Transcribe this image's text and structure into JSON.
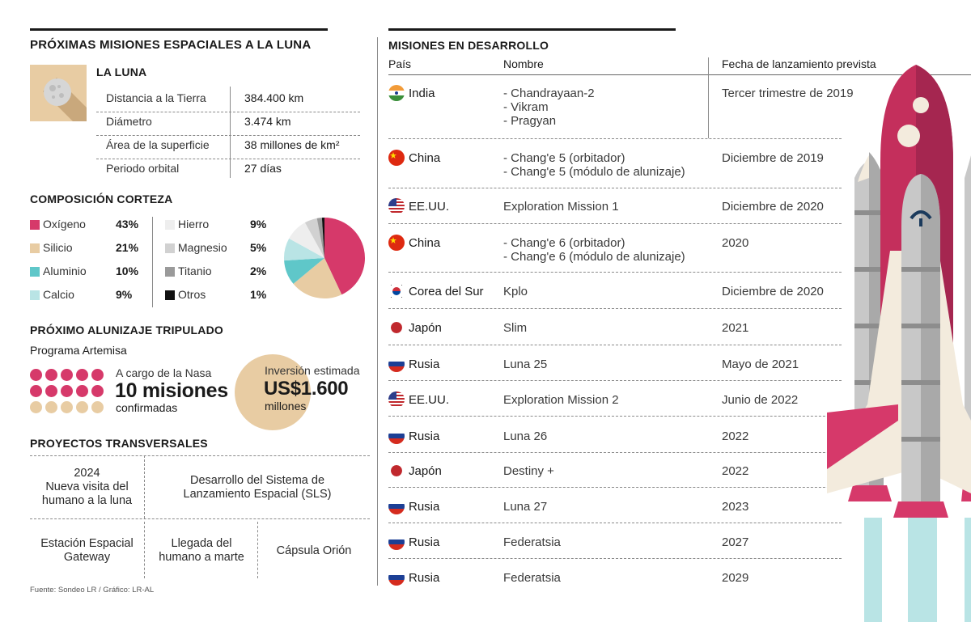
{
  "header": {
    "title": "PRÓXIMAS MISIONES ESPACIALES A LA LUNA"
  },
  "moon": {
    "title": "LA LUNA",
    "rows": [
      {
        "label": "Distancia a la Tierra",
        "value": "384.400 km"
      },
      {
        "label": "Diámetro",
        "value": "3.474 km"
      },
      {
        "label": "Área de la superficie",
        "value": "38 millones de km²"
      },
      {
        "label": "Periodo orbital",
        "value": "27 días"
      }
    ]
  },
  "crust": {
    "title": "COMPOSICIÓN CORTEZA",
    "items": [
      {
        "name": "Oxígeno",
        "pct": "43%",
        "color": "#d6396a"
      },
      {
        "name": "Silicio",
        "pct": "21%",
        "color": "#e8cca3"
      },
      {
        "name": "Aluminio",
        "pct": "10%",
        "color": "#5fc7c9"
      },
      {
        "name": "Calcio",
        "pct": "9%",
        "color": "#b9e4e5"
      },
      {
        "name": "Hierro",
        "pct": "9%",
        "color": "#eeeeee"
      },
      {
        "name": "Magnesio",
        "pct": "5%",
        "color": "#d1d1d1"
      },
      {
        "name": "Titanio",
        "pct": "2%",
        "color": "#9a9a9a"
      },
      {
        "name": "Otros",
        "pct": "1%",
        "color": "#111111"
      }
    ]
  },
  "chart_data": {
    "type": "pie",
    "categories": [
      "Oxígeno",
      "Silicio",
      "Aluminio",
      "Calcio",
      "Hierro",
      "Magnesio",
      "Titanio",
      "Otros"
    ],
    "values": [
      43,
      21,
      10,
      9,
      9,
      5,
      2,
      1
    ]
  },
  "artemis": {
    "title": "PRÓXIMO ALUNIZAJE TRIPULADO",
    "program": "Programa Artemisa",
    "lead": "A cargo de la Nasa",
    "missions": "10 misiones",
    "confirmed": "confirmadas",
    "dots_total": 15,
    "dots_highlight": 10,
    "investment_label": "Inversión estimada",
    "investment_value": "US$1.600",
    "investment_unit": "millones"
  },
  "projects": {
    "title": "PROYECTOS TRANSVERSALES",
    "items": [
      "2024\nNueva visita del\nhumano a la luna",
      "Desarrollo del Sistema de\nLanzamiento Espacial (SLS)",
      "Estación Espacial\nGateway",
      "Llegada del\nhumano a marte",
      "Cápsula Orión"
    ]
  },
  "missions": {
    "title": "MISIONES EN DESARROLLO",
    "headers": [
      "País",
      "Nombre",
      "Fecha de lanzamiento prevista"
    ],
    "rows": [
      {
        "country": "India",
        "flag": "india",
        "name": "- Chandrayaan-2\n- Vikram\n- Pragyan",
        "date": "Tercer trimestre de 2019"
      },
      {
        "country": "China",
        "flag": "china",
        "name": "- Chang'e 5 (orbitador)\n- Chang'e 5 (módulo de alunizaje)",
        "date": "Diciembre de 2019"
      },
      {
        "country": "EE.UU.",
        "flag": "usa",
        "name": "Exploration Mission 1",
        "date": "Diciembre de 2020"
      },
      {
        "country": "China",
        "flag": "china",
        "name": "- Chang'e 6 (orbitador)\n- Chang'e 6 (módulo de alunizaje)",
        "date": "2020"
      },
      {
        "country": "Corea del Sur",
        "flag": "korea",
        "name": "Kplo",
        "date": "Diciembre de 2020"
      },
      {
        "country": "Japón",
        "flag": "japan",
        "name": "Slim",
        "date": "2021"
      },
      {
        "country": "Rusia",
        "flag": "russia",
        "name": "Luna 25",
        "date": "Mayo de 2021"
      },
      {
        "country": "EE.UU.",
        "flag": "usa",
        "name": "Exploration Mission 2",
        "date": "Junio de 2022"
      },
      {
        "country": "Rusia",
        "flag": "russia",
        "name": "Luna 26",
        "date": "2022"
      },
      {
        "country": "Japón",
        "flag": "japan",
        "name": "Destiny +",
        "date": "2022"
      },
      {
        "country": "Rusia",
        "flag": "russia",
        "name": "Luna 27",
        "date": "2023"
      },
      {
        "country": "Rusia",
        "flag": "russia",
        "name": "Federatsia",
        "date": "2027"
      },
      {
        "country": "Rusia",
        "flag": "russia",
        "name": "Federatsia",
        "date": "2029"
      }
    ]
  },
  "footer": {
    "source": "Fuente: Sondeo LR / Gráfico: LR-AL"
  }
}
